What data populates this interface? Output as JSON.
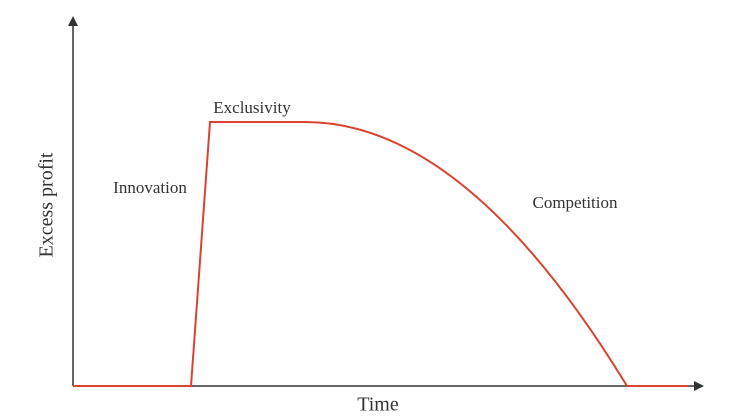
{
  "diagram": {
    "axes": {
      "x_label": "Time",
      "y_label": "Excess profit"
    },
    "phases": [
      "Innovation",
      "Exclusivity",
      "Competition"
    ]
  }
}
